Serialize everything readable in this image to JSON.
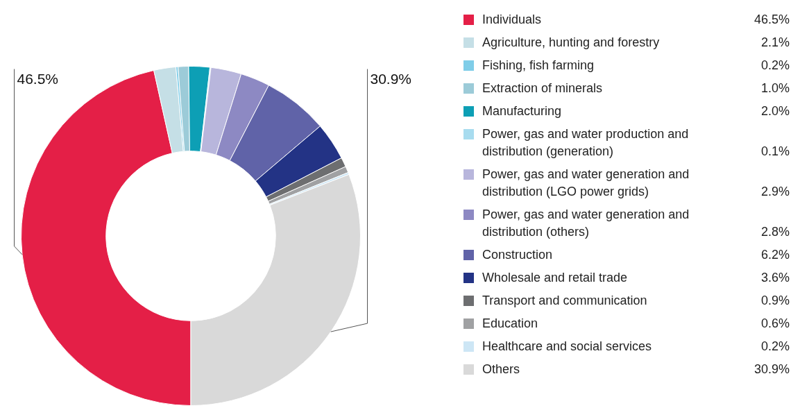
{
  "chart_data": {
    "type": "donut",
    "legend": "right",
    "data_labels": true,
    "categories": [
      "Individuals",
      "Agriculture, hunting and forestry",
      "Fishing, fish farming",
      "Extraction of minerals",
      "Manufacturing",
      "Power, gas and water production and distribution (generation)",
      "Power, gas and water generation and distribution (LGO power grids)",
      "Power, gas and water generation and distribution (others)",
      "Construction",
      "Wholesale and retail trade",
      "Transport and communication",
      "Education",
      "Healthcare and social services",
      "Others"
    ],
    "values": [
      46.5,
      2.1,
      0.2,
      1.0,
      2.0,
      0.1,
      2.9,
      2.8,
      6.2,
      3.6,
      0.9,
      0.6,
      0.2,
      30.9
    ],
    "value_labels": [
      "46.5%",
      "2.1%",
      "0.2%",
      "1.0%",
      "2.0%",
      "0.1%",
      "2.9%",
      "2.8%",
      "6.2%",
      "3.6%",
      "0.9%",
      "0.6%",
      "0.2%",
      "30.9%"
    ],
    "colors": [
      "#e41f47",
      "#c5dfe6",
      "#7fcde8",
      "#9ccbd8",
      "#0d9fb5",
      "#a8dcef",
      "#b8b6dc",
      "#8d89c3",
      "#6063a8",
      "#233385",
      "#6d6e70",
      "#a0a1a3",
      "#cde6f5",
      "#d9d9d9"
    ],
    "annotations": [
      {
        "text": "46.5%",
        "x": "Individuals"
      },
      {
        "text": "30.9%",
        "x": "Others"
      }
    ]
  }
}
